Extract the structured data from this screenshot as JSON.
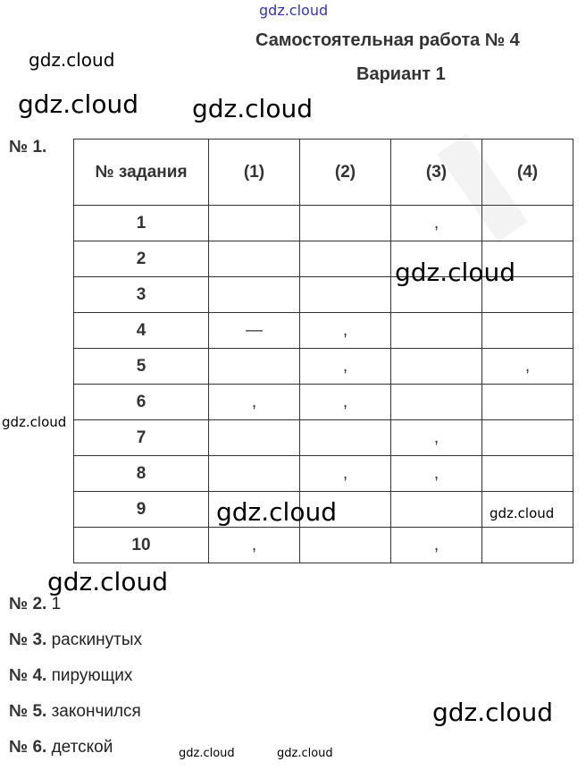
{
  "header": {
    "title": "Самостоятельная работа № 4",
    "variant": "Вариант 1"
  },
  "task1": {
    "label": "№ 1.",
    "columns": [
      "№ задания",
      "(1)",
      "(2)",
      "(3)",
      "(4)"
    ],
    "rows": [
      [
        "1",
        "",
        "",
        ",",
        ""
      ],
      [
        "2",
        "",
        "",
        "",
        ""
      ],
      [
        "3",
        "",
        "",
        "",
        ""
      ],
      [
        "4",
        "—",
        ",",
        "",
        ""
      ],
      [
        "5",
        "",
        ",",
        "",
        ","
      ],
      [
        "6",
        ",",
        ",",
        "",
        ""
      ],
      [
        "7",
        "",
        "",
        ",",
        ""
      ],
      [
        "8",
        "",
        ",",
        ",",
        ""
      ],
      [
        "9",
        "",
        "",
        "",
        ""
      ],
      [
        "10",
        ",",
        "",
        ",",
        ""
      ]
    ]
  },
  "answers": [
    {
      "label": "№ 2.",
      "value": "1"
    },
    {
      "label": "№ 3.",
      "value": "раскинутых"
    },
    {
      "label": "№ 4.",
      "value": "пирующих"
    },
    {
      "label": "№ 5.",
      "value": "закончился"
    },
    {
      "label": "№ 6.",
      "value": "детской"
    }
  ],
  "watermark": "gdz.cloud",
  "colors": {
    "text": "#333333",
    "watermark_top": "#3333cc"
  }
}
